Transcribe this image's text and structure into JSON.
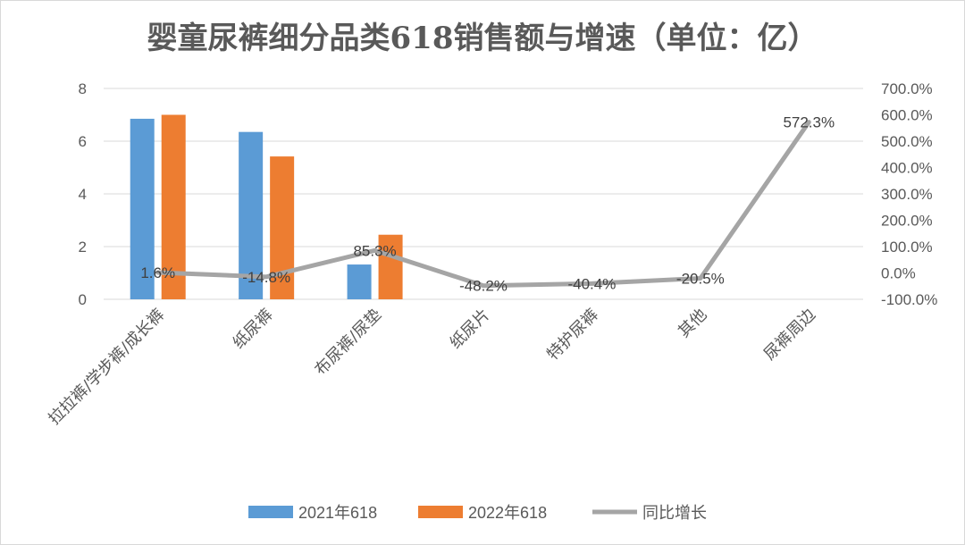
{
  "chart_data": {
    "type": "bar",
    "title": "婴童尿裤细分品类618销售额与增速（单位：亿）",
    "categories": [
      "拉拉裤/学步裤/成长裤",
      "纸尿裤",
      "布尿裤/尿垫",
      "纸尿片",
      "特护尿裤",
      "其他",
      "尿裤周边"
    ],
    "series": [
      {
        "name": "2021年618",
        "kind": "bar",
        "axis": "left",
        "color": "#5B9BD5",
        "values": [
          6.85,
          6.35,
          1.32,
          null,
          null,
          null,
          null
        ]
      },
      {
        "name": "2022年618",
        "kind": "bar",
        "axis": "left",
        "color": "#ED7D31",
        "values": [
          7.0,
          5.42,
          2.45,
          null,
          null,
          null,
          null
        ]
      },
      {
        "name": "同比增长",
        "kind": "line",
        "axis": "right",
        "color": "#A5A5A5",
        "values": [
          1.6,
          -14.8,
          85.3,
          -48.2,
          -40.4,
          -20.5,
          572.3
        ],
        "labels": [
          "1.6%",
          "-14.8%",
          "85.3%",
          "-48.2%",
          "-40.4%",
          "-20.5%",
          "572.3%"
        ]
      }
    ],
    "y_left": {
      "ylim": [
        0,
        8
      ],
      "ticks": [
        "0",
        "2",
        "4",
        "6",
        "8"
      ]
    },
    "y_right": {
      "ylim": [
        -100,
        700
      ],
      "ticks": [
        "-100.0%",
        "0.0%",
        "100.0%",
        "200.0%",
        "300.0%",
        "400.0%",
        "500.0%",
        "600.0%",
        "700.0%"
      ]
    },
    "grid": true,
    "legend_position": "bottom"
  }
}
